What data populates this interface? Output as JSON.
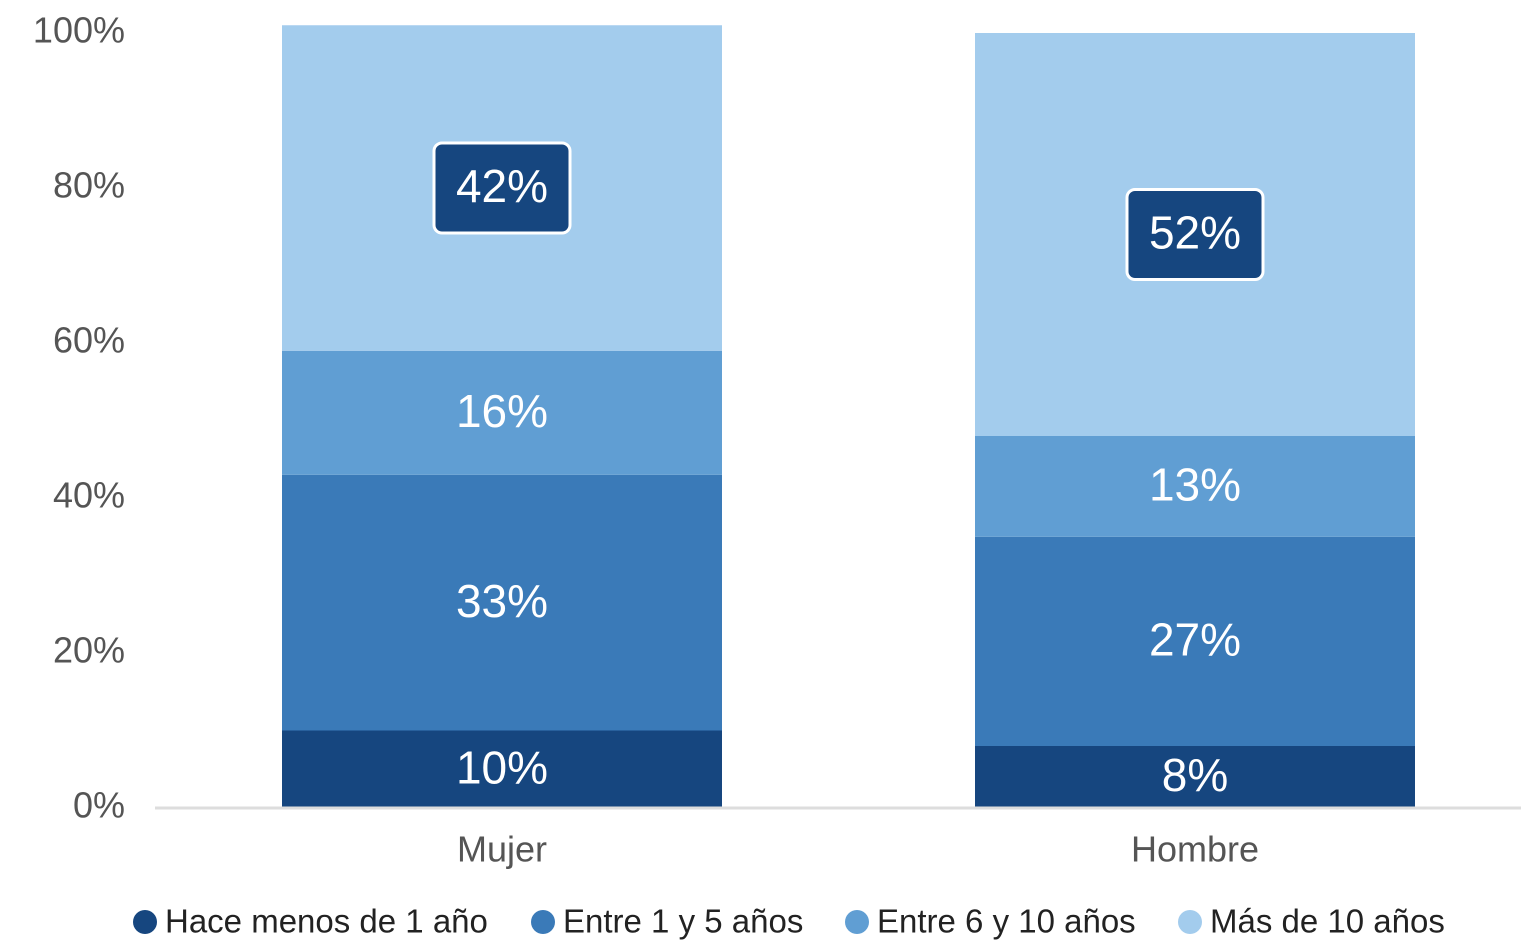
{
  "chart_data": {
    "type": "stacked_bar",
    "categories": [
      "Mujer",
      "Hombre"
    ],
    "series": [
      {
        "name": "Hace menos de 1 año",
        "color": "#16467f",
        "values": [
          10,
          8
        ],
        "value_labels": [
          "10%",
          "8%"
        ]
      },
      {
        "name": "Entre 1 y 5 años",
        "color": "#3a7ab8",
        "values": [
          33,
          27
        ],
        "value_labels": [
          "33%",
          "27%"
        ]
      },
      {
        "name": "Entre 6 y 10 años",
        "color": "#609ed3",
        "values": [
          16,
          13
        ],
        "value_labels": [
          "16%",
          "13%"
        ]
      },
      {
        "name": "Más de 10 años",
        "color": "#a3cced",
        "values": [
          42,
          52
        ],
        "value_labels": [
          "42%",
          "52%"
        ]
      }
    ],
    "ylim": [
      0,
      100
    ],
    "yticks": [
      {
        "value": 0,
        "label": "0%"
      },
      {
        "value": 20,
        "label": "20%"
      },
      {
        "value": 40,
        "label": "40%"
      },
      {
        "value": 60,
        "label": "60%"
      },
      {
        "value": 80,
        "label": "80%"
      },
      {
        "value": 100,
        "label": "100%"
      }
    ],
    "grid": false,
    "legend": "bottom"
  }
}
